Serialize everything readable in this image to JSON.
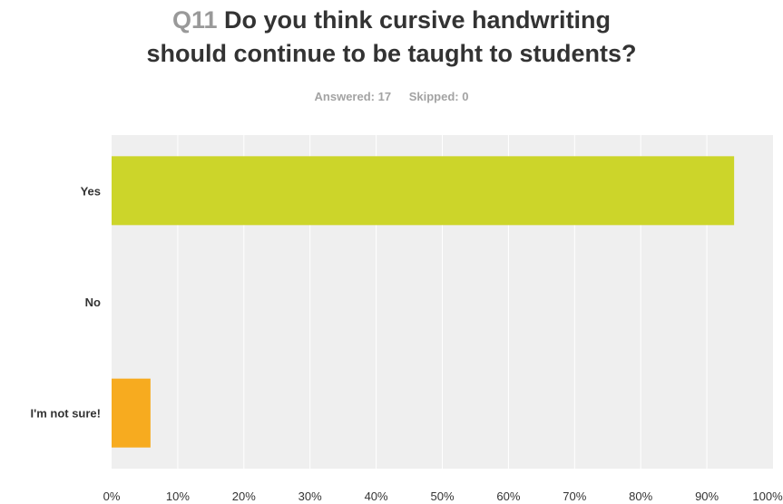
{
  "question": {
    "number": "Q11",
    "text_line1": "Do you think cursive handwriting",
    "text_line2": "should continue to be taught to students?"
  },
  "meta": {
    "answered": "Answered: 17",
    "skipped": "Skipped: 0"
  },
  "colors": {
    "plot_bg": "#efefef",
    "grid": "#ffffff",
    "bars": [
      "#ccd52a",
      "#ee5533",
      "#f7ab1f"
    ]
  },
  "chart_data": {
    "type": "bar",
    "orientation": "horizontal",
    "categories": [
      "Yes",
      "No",
      "I'm not sure!"
    ],
    "values": [
      94.12,
      0,
      5.88
    ],
    "xlim": [
      0,
      100
    ],
    "xticks": [
      "0%",
      "10%",
      "20%",
      "30%",
      "40%",
      "50%",
      "60%",
      "70%",
      "80%",
      "90%",
      "100%"
    ],
    "grid": true
  }
}
